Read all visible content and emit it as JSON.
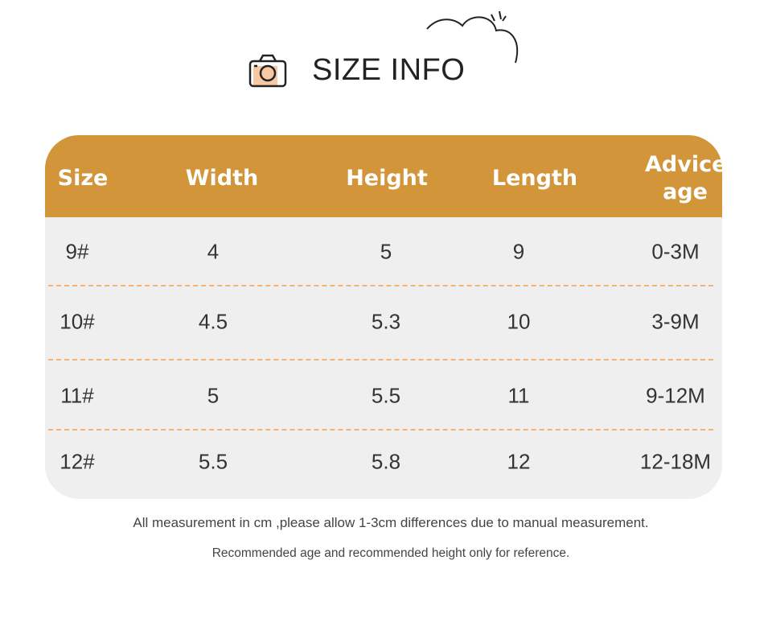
{
  "header": {
    "title": "SIZE INFO"
  },
  "table": {
    "columns": [
      "Size",
      "Width",
      "Height",
      "Length",
      "Advice age"
    ],
    "rows": [
      [
        "9#",
        "4",
        "5",
        "9",
        "0-3M"
      ],
      [
        "10#",
        "4.5",
        "5.3",
        "10",
        "3-9M"
      ],
      [
        "11#",
        "5",
        "5.5",
        "11",
        "9-12M"
      ],
      [
        "12#",
        "5.5",
        "5.8",
        "12",
        "12-18M"
      ]
    ]
  },
  "notes": [
    "All measurement in cm ,please allow 1-3cm differences due to manual measurement.",
    "Recommended age and recommended height only for reference."
  ]
}
